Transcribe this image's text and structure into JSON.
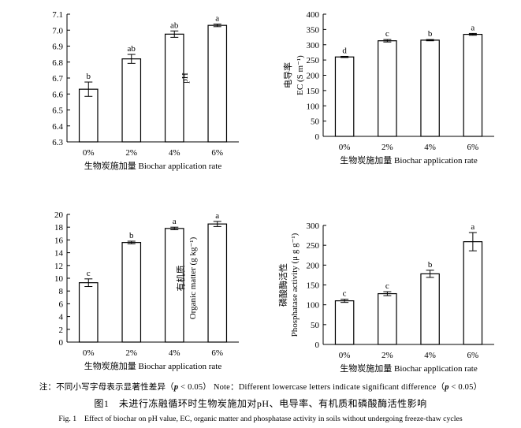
{
  "panels": {
    "ph": {
      "ylabel_lines": [
        "pH"
      ],
      "xlabel": "生物炭施加量 Biochar application rate"
    },
    "ec": {
      "ylabel_lines": [
        "电导率",
        "EC (S m⁻¹)"
      ],
      "xlabel": "生物炭施加量 Biochar application rate"
    },
    "om": {
      "ylabel_lines": [
        "有机质",
        "Organic matter (g kg⁻¹)"
      ],
      "xlabel": "生物炭施加量 Biochar application rate"
    },
    "pa": {
      "ylabel_lines": [
        "磷酸酶活性",
        "Phosphatase activity (μ g g⁻¹)"
      ],
      "xlabel": "生物炭施加量 Biochar application rate"
    }
  },
  "chart_data": [
    {
      "id": "ph",
      "type": "bar",
      "categories": [
        "0%",
        "2%",
        "4%",
        "6%"
      ],
      "values": [
        6.63,
        6.82,
        6.975,
        7.03
      ],
      "errors": [
        0.045,
        0.028,
        0.02,
        0.008
      ],
      "letters": [
        "b",
        "ab",
        "ab",
        "a"
      ],
      "ylim": [
        6.3,
        7.1
      ],
      "yticks": [
        6.3,
        6.4,
        6.5,
        6.6,
        6.7,
        6.8,
        6.9,
        7.0,
        7.1
      ],
      "tick_decimals": 1
    },
    {
      "id": "ec",
      "type": "bar",
      "categories": [
        "0%",
        "2%",
        "4%",
        "6%"
      ],
      "values": [
        260,
        313,
        315,
        334
      ],
      "errors": [
        2,
        4,
        2,
        3
      ],
      "letters": [
        "d",
        "c",
        "b",
        "a"
      ],
      "ylim": [
        0,
        400
      ],
      "yticks": [
        0,
        50,
        100,
        150,
        200,
        250,
        300,
        350,
        400
      ],
      "tick_decimals": 0
    },
    {
      "id": "om",
      "type": "bar",
      "categories": [
        "0%",
        "2%",
        "4%",
        "6%"
      ],
      "values": [
        9.3,
        15.6,
        17.8,
        18.5
      ],
      "errors": [
        0.6,
        0.2,
        0.2,
        0.4
      ],
      "letters": [
        "c",
        "b",
        "a",
        "a"
      ],
      "ylim": [
        0,
        20
      ],
      "yticks": [
        0,
        2,
        4,
        6,
        8,
        10,
        12,
        14,
        16,
        18,
        20
      ],
      "tick_decimals": 0
    },
    {
      "id": "pa",
      "type": "bar",
      "categories": [
        "0%",
        "2%",
        "4%",
        "6%"
      ],
      "values": [
        110,
        128,
        178,
        259
      ],
      "errors": [
        4,
        5,
        9,
        23
      ],
      "letters": [
        "c",
        "c",
        "b",
        "a"
      ],
      "ylim": [
        0,
        300
      ],
      "yticks": [
        0,
        50,
        100,
        150,
        200,
        250,
        300
      ],
      "tick_decimals": 0
    }
  ],
  "captions": {
    "note_prefix": "注：不同小写字母表示显著性差异（",
    "note_p": "p",
    "note_middle": " < 0.05） Note：Different lowercase letters indicate significant difference（",
    "note_p2": "p",
    "note_suffix": " < 0.05）",
    "figure_title": "图1　未进行冻融循环时生物炭施加对pH、电导率、有机质和磷酸酶活性影响",
    "figure_title_en": "Fig. 1　Effect of biochar on pH value, EC, organic matter and phosphatase activity in soils without undergoing freeze-thaw cycles"
  }
}
